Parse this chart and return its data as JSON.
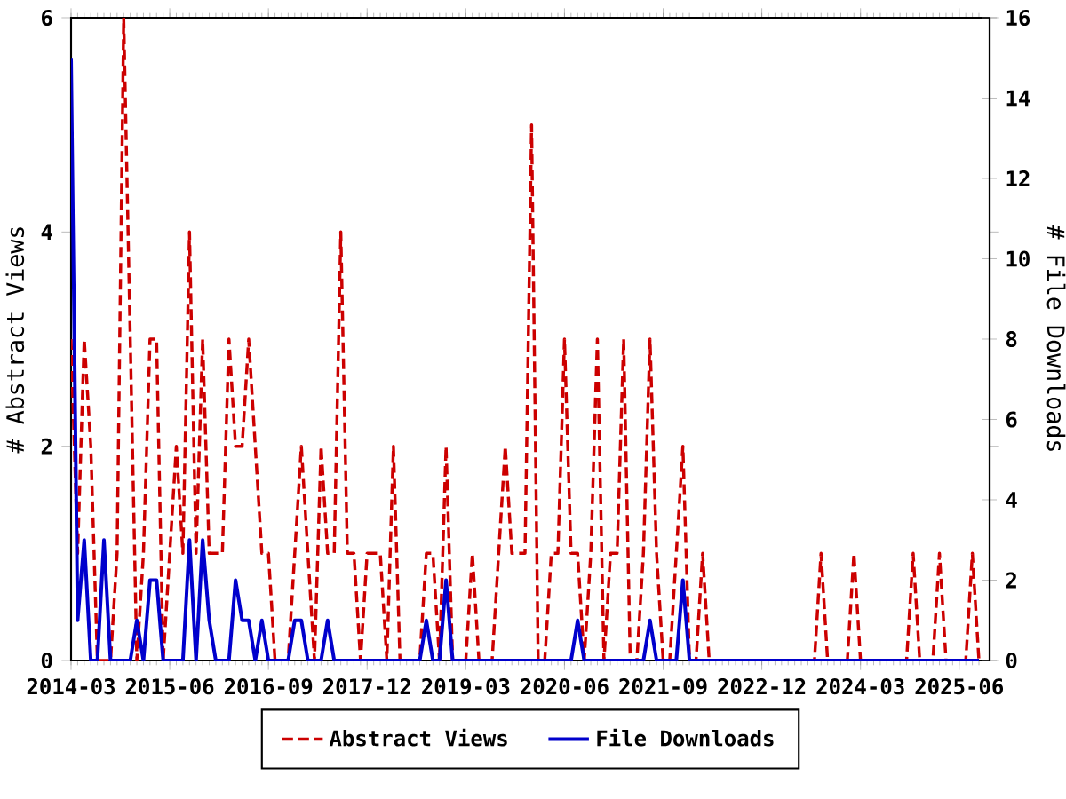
{
  "chart_data": {
    "type": "line",
    "ylabel": "# Abstract Views",
    "y2label": "# File Downloads",
    "x": [
      "2014-03",
      "2014-04",
      "2014-05",
      "2014-06",
      "2014-07",
      "2014-08",
      "2014-09",
      "2014-10",
      "2014-11",
      "2014-12",
      "2015-01",
      "2015-02",
      "2015-03",
      "2015-04",
      "2015-05",
      "2015-06",
      "2015-07",
      "2015-08",
      "2015-09",
      "2015-10",
      "2015-11",
      "2015-12",
      "2016-01",
      "2016-02",
      "2016-03",
      "2016-04",
      "2016-05",
      "2016-06",
      "2016-07",
      "2016-08",
      "2016-09",
      "2016-10",
      "2016-11",
      "2016-12",
      "2017-01",
      "2017-02",
      "2017-03",
      "2017-04",
      "2017-05",
      "2017-06",
      "2017-07",
      "2017-08",
      "2017-09",
      "2017-10",
      "2017-11",
      "2017-12",
      "2018-01",
      "2018-02",
      "2018-03",
      "2018-04",
      "2018-05",
      "2018-06",
      "2018-07",
      "2018-08",
      "2018-09",
      "2018-10",
      "2018-11",
      "2018-12",
      "2019-01",
      "2019-02",
      "2019-03",
      "2019-04",
      "2019-05",
      "2019-06",
      "2019-07",
      "2019-08",
      "2019-09",
      "2019-10",
      "2019-11",
      "2019-12",
      "2020-01",
      "2020-02",
      "2020-03",
      "2020-04",
      "2020-05",
      "2020-06",
      "2020-07",
      "2020-08",
      "2020-09",
      "2020-10",
      "2020-11",
      "2020-12",
      "2021-01",
      "2021-02",
      "2021-03",
      "2021-04",
      "2021-05",
      "2021-06",
      "2021-07",
      "2021-08",
      "2021-09",
      "2021-10",
      "2021-11",
      "2021-12",
      "2022-01",
      "2022-02",
      "2022-03",
      "2022-04",
      "2022-05",
      "2022-06",
      "2022-07",
      "2022-08",
      "2022-09",
      "2022-10",
      "2022-11",
      "2022-12",
      "2023-01",
      "2023-02",
      "2023-03",
      "2023-04",
      "2023-05",
      "2023-06",
      "2023-07",
      "2023-08",
      "2023-09",
      "2023-10",
      "2023-11",
      "2023-12",
      "2024-01",
      "2024-02",
      "2024-03",
      "2024-04",
      "2024-05",
      "2024-06",
      "2024-07",
      "2024-08",
      "2024-09",
      "2024-10",
      "2024-11",
      "2024-12",
      "2025-01",
      "2025-02",
      "2025-03",
      "2025-04",
      "2025-05",
      "2025-06",
      "2025-07",
      "2025-08",
      "2025-09"
    ],
    "series": [
      {
        "name": "Abstract Views",
        "color": "#cc0000",
        "line_style": "dashed",
        "values": [
          3,
          1,
          3,
          2,
          0,
          0,
          0,
          1,
          6,
          3,
          0,
          1,
          3,
          3,
          0,
          1,
          2,
          1,
          4,
          1,
          3,
          1,
          1,
          1,
          3,
          2,
          2,
          3,
          2,
          1,
          1,
          0,
          0,
          0,
          1,
          2,
          1,
          0,
          2,
          1,
          1,
          4,
          1,
          1,
          0,
          1,
          1,
          1,
          0,
          2,
          0,
          0,
          0,
          0,
          1,
          1,
          0,
          2,
          0,
          0,
          0,
          1,
          0,
          0,
          0,
          1,
          2,
          1,
          1,
          1,
          5,
          0,
          0,
          1,
          1,
          3,
          1,
          1,
          0,
          1,
          3,
          0,
          1,
          1,
          3,
          0,
          0,
          1,
          3,
          1,
          0,
          0,
          1,
          2,
          0,
          0,
          1,
          0,
          0,
          0,
          0,
          0,
          0,
          0,
          0,
          0,
          0,
          0,
          0,
          0,
          0,
          0,
          0,
          0,
          1,
          0,
          0,
          0,
          0,
          1,
          0,
          0,
          0,
          0,
          0,
          0,
          0,
          0,
          1,
          0,
          0,
          0,
          1,
          0,
          0,
          0,
          0,
          1,
          0
        ]
      },
      {
        "name": "File Downloads",
        "color": "#0000cc",
        "line_style": "solid",
        "axis": "y2",
        "values": [
          15,
          1,
          3,
          0,
          0,
          3,
          0,
          0,
          0,
          0,
          1,
          0,
          2,
          2,
          0,
          0,
          0,
          0,
          3,
          0,
          3,
          1,
          0,
          0,
          0,
          2,
          1,
          1,
          0,
          1,
          0,
          0,
          0,
          0,
          1,
          1,
          0,
          0,
          0,
          1,
          0,
          0,
          0,
          0,
          0,
          0,
          0,
          0,
          0,
          0,
          0,
          0,
          0,
          0,
          1,
          0,
          0,
          2,
          0,
          0,
          0,
          0,
          0,
          0,
          0,
          0,
          0,
          0,
          0,
          0,
          0,
          0,
          0,
          0,
          0,
          0,
          0,
          1,
          0,
          0,
          0,
          0,
          0,
          0,
          0,
          0,
          0,
          0,
          1,
          0,
          0,
          0,
          0,
          2,
          0,
          0,
          0,
          0,
          0,
          0,
          0,
          0,
          0,
          0,
          0,
          0,
          0,
          0,
          0,
          0,
          0,
          0,
          0,
          0,
          0,
          0,
          0,
          0,
          0,
          0,
          0,
          0,
          0,
          0,
          0,
          0,
          0,
          0,
          0,
          0,
          0,
          0,
          0,
          0,
          0,
          0,
          0,
          0,
          0
        ]
      }
    ],
    "xlim": [
      "2014-03",
      "2025-10-20"
    ],
    "xticks": [
      "2014-03",
      "2015-06",
      "2016-09",
      "2017-12",
      "2019-03",
      "2020-06",
      "2021-09",
      "2022-12",
      "2024-03",
      "2025-06"
    ],
    "ylim": [
      0,
      6
    ],
    "yticks": [
      0,
      2,
      4,
      6
    ],
    "y2lim": [
      0,
      16
    ],
    "y2ticks": [
      0,
      2,
      4,
      6,
      8,
      10,
      12,
      14,
      16
    ],
    "legend": "bottom",
    "grid": false,
    "marker": "none"
  }
}
